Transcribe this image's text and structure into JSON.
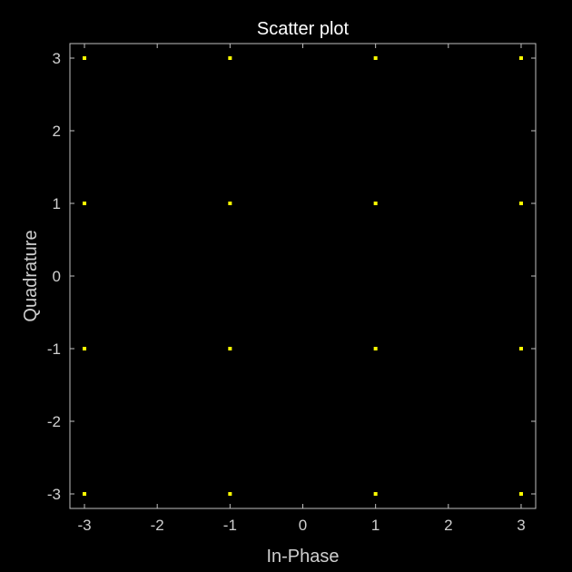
{
  "chart_data": {
    "type": "scatter",
    "title": "Scatter plot",
    "xlabel": "In-Phase",
    "ylabel": "Quadrature",
    "xlim": [
      -3.2,
      3.2
    ],
    "ylim": [
      -3.2,
      3.2
    ],
    "xticks": [
      -3,
      -2,
      -1,
      0,
      1,
      2,
      3
    ],
    "yticks": [
      -3,
      -2,
      -1,
      0,
      1,
      2,
      3
    ],
    "grid": false,
    "background_color": "#000000",
    "axes_color": "#bfbfbf",
    "point_color": "#ffff00",
    "series": [
      {
        "x": [
          -3,
          -1,
          1,
          3,
          -3,
          -1,
          1,
          3,
          -3,
          -1,
          1,
          3,
          -3,
          -1,
          1,
          3
        ],
        "y": [
          3,
          3,
          3,
          3,
          1,
          1,
          1,
          1,
          -1,
          -1,
          -1,
          -1,
          -3,
          -3,
          -3,
          -3
        ]
      }
    ]
  }
}
